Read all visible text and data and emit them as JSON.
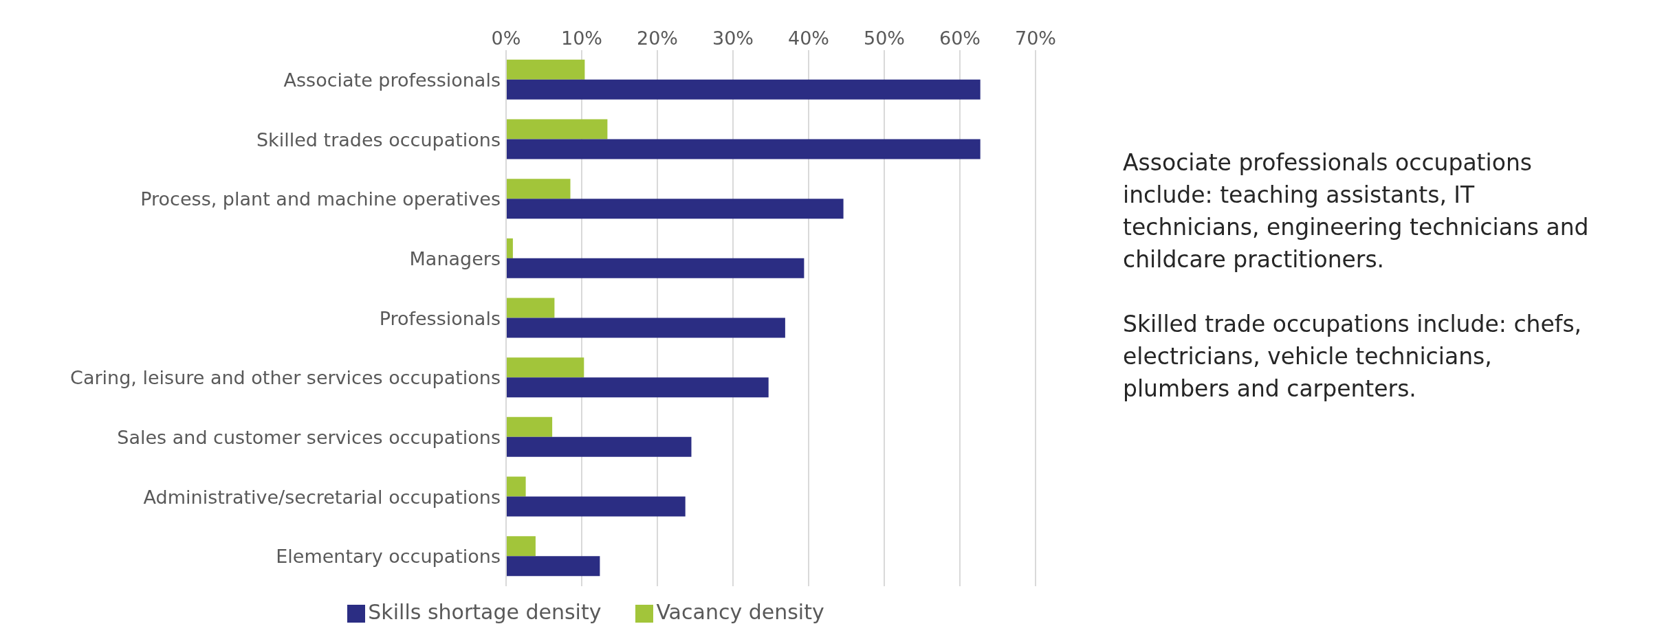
{
  "chart_data": {
    "type": "bar",
    "orientation": "horizontal",
    "categories": [
      "Associate professionals",
      "Skilled trades occupations",
      "Process, plant and machine operatives",
      "Managers",
      "Professionals",
      "Caring, leisure and other services occupations",
      "Sales and customer services occupations",
      "Administrative/secretarial occupations",
      "Elementary occupations"
    ],
    "series": [
      {
        "name": "Vacancy density",
        "color": "#a2c53a",
        "values": [
          10.4,
          13.4,
          8.5,
          0.9,
          6.4,
          10.3,
          6.1,
          2.6,
          3.9
        ]
      },
      {
        "name": "Skills shortage density",
        "color": "#2b2d83",
        "values": [
          62.7,
          62.7,
          44.6,
          39.4,
          36.9,
          34.7,
          24.5,
          23.7,
          12.4
        ]
      }
    ],
    "xlim": [
      0,
      70
    ],
    "xticks": [
      {
        "value": 0,
        "label": "0%"
      },
      {
        "value": 10,
        "label": "10%"
      },
      {
        "value": 20,
        "label": "20%"
      },
      {
        "value": 30,
        "label": "30%"
      },
      {
        "value": 40,
        "label": "40%"
      },
      {
        "value": 50,
        "label": "50%"
      },
      {
        "value": 60,
        "label": "60%"
      },
      {
        "value": 70,
        "label": "70%"
      }
    ],
    "grid": "x",
    "legend": "bottom",
    "annotations": [
      "Associate professionals occupations include: teaching assistants, IT technicians, engineering technicians and childcare practitioners.",
      "Skilled trade occupations include: chefs, electricians, vehicle technicians, plumbers and carpenters."
    ]
  }
}
